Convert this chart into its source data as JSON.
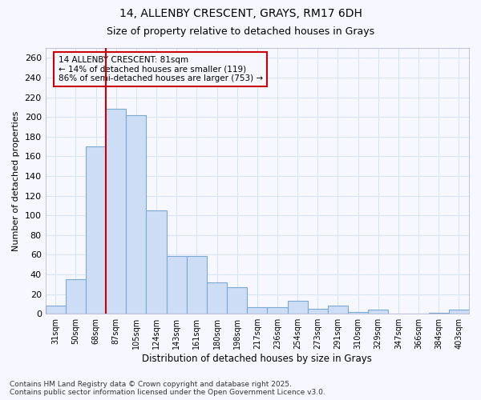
{
  "title_line1": "14, ALLENBY CRESCENT, GRAYS, RM17 6DH",
  "title_line2": "Size of property relative to detached houses in Grays",
  "xlabel": "Distribution of detached houses by size in Grays",
  "ylabel": "Number of detached properties",
  "categories": [
    "31sqm",
    "50sqm",
    "68sqm",
    "87sqm",
    "105sqm",
    "124sqm",
    "143sqm",
    "161sqm",
    "180sqm",
    "198sqm",
    "217sqm",
    "236sqm",
    "254sqm",
    "273sqm",
    "291sqm",
    "310sqm",
    "329sqm",
    "347sqm",
    "366sqm",
    "384sqm",
    "403sqm"
  ],
  "values": [
    8,
    35,
    170,
    208,
    202,
    105,
    59,
    59,
    32,
    27,
    7,
    7,
    13,
    5,
    8,
    2,
    4,
    0,
    0,
    1,
    4
  ],
  "bar_color": "#ccddf5",
  "bar_edge_color": "#7aaad4",
  "vline_x": 2.5,
  "vline_color": "#cc0000",
  "annotation_title": "14 ALLENBY CRESCENT: 81sqm",
  "annotation_line2": "← 14% of detached houses are smaller (119)",
  "annotation_line3": "86% of semi-detached houses are larger (753) →",
  "annotation_box_color": "#cc0000",
  "ylim": [
    0,
    270
  ],
  "yticks": [
    0,
    20,
    40,
    60,
    80,
    100,
    120,
    140,
    160,
    180,
    200,
    220,
    240,
    260
  ],
  "background_color": "#f7f8ff",
  "grid_color": "#d8e4f8",
  "footnote1": "Contains HM Land Registry data © Crown copyright and database right 2025.",
  "footnote2": "Contains public sector information licensed under the Open Government Licence v3.0."
}
